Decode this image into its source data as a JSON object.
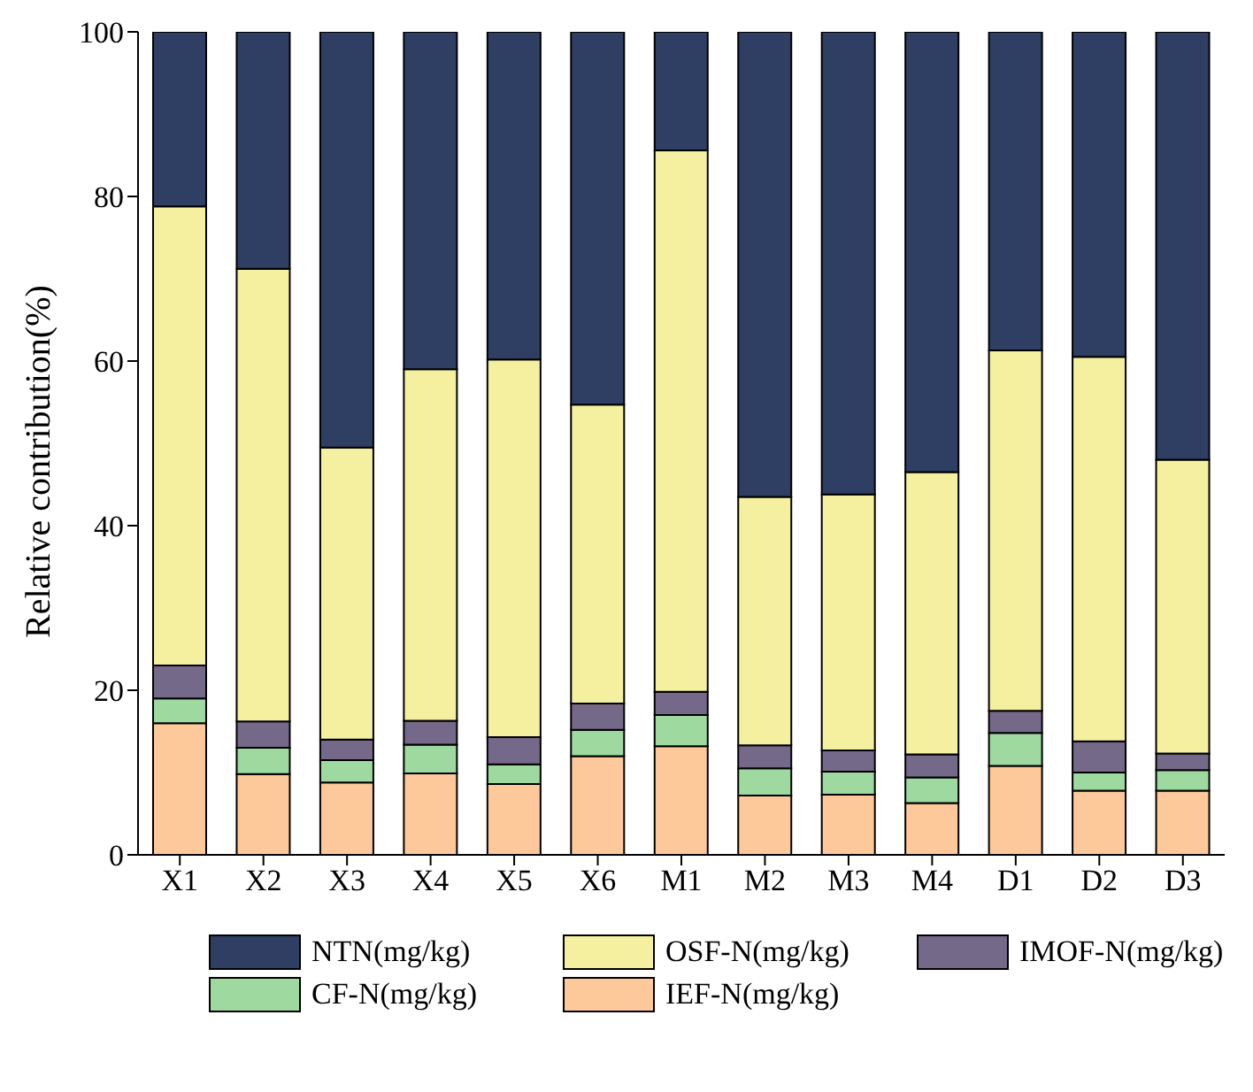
{
  "chart_data": {
    "type": "bar",
    "stacked": true,
    "ylabel": "Relative contribution(%)",
    "categories": [
      "X1",
      "X2",
      "X3",
      "X4",
      "X5",
      "X6",
      "M1",
      "M2",
      "M3",
      "M4",
      "D1",
      "D2",
      "D3"
    ],
    "series": [
      {
        "name": "IEF-N(mg/kg)",
        "color": "#fdc99a",
        "values": [
          16,
          9.8,
          8.8,
          9.9,
          8.6,
          12,
          13.2,
          7.2,
          7.3,
          6.3,
          10.8,
          7.8,
          7.8
        ]
      },
      {
        "name": "CF-N(mg/kg)",
        "color": "#9ed9a0",
        "values": [
          3,
          3.2,
          2.7,
          3.5,
          2.4,
          3.2,
          3.8,
          3.3,
          2.8,
          3.1,
          4,
          2.2,
          2.5
        ]
      },
      {
        "name": "IMOF-N(mg/kg)",
        "color": "#75698a",
        "values": [
          4,
          3.2,
          2.5,
          2.9,
          3.3,
          3.2,
          2.8,
          2.8,
          2.6,
          2.8,
          2.7,
          3.8,
          2
        ]
      },
      {
        "name": "OSF-N(mg/kg)",
        "color": "#f5f0a0",
        "values": [
          55.8,
          55,
          35.5,
          42.7,
          45.9,
          36.3,
          65.8,
          30.2,
          31.1,
          34.3,
          43.8,
          46.7,
          35.7
        ]
      },
      {
        "name": "NTN(mg/kg)",
        "color": "#2e3f63",
        "values": [
          21.2,
          28.8,
          50.5,
          41,
          39.8,
          45.3,
          14.4,
          56.5,
          56.2,
          53.5,
          38.7,
          39.5,
          52
        ]
      }
    ],
    "ylim": [
      0,
      100
    ],
    "yticks": [
      0,
      20,
      40,
      60,
      80,
      100
    ],
    "grid": false,
    "legend": "bottom"
  }
}
